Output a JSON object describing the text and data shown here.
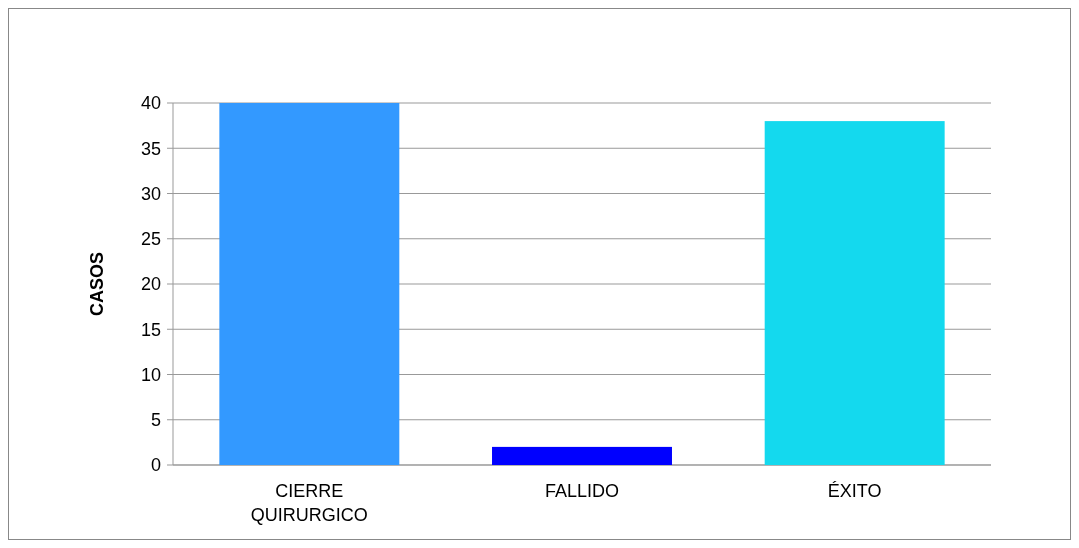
{
  "chart_data": {
    "type": "bar",
    "ylabel": "CASOS",
    "categories": [
      "CIERRE QUIRURGICO",
      "FALLIDO",
      "ÉXITO"
    ],
    "values": [
      40,
      2,
      38
    ],
    "colors": [
      "#3399ff",
      "#0000ff",
      "#14d9ee"
    ],
    "ylim": [
      0,
      40
    ],
    "yticks": [
      0,
      5,
      10,
      15,
      20,
      25,
      30,
      35,
      40
    ],
    "grid": "y"
  }
}
